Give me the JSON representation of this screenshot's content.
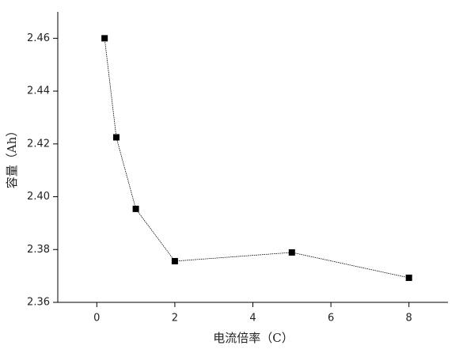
{
  "chart_data": {
    "type": "line",
    "xlabel": "电流倍率（C）",
    "ylabel": "容量（Ah）",
    "x": [
      0.2,
      0.5,
      1,
      2,
      5,
      8
    ],
    "series": [
      {
        "color": "#000000",
        "values": [
          2.46,
          2.4225,
          2.3954,
          2.3756,
          2.3789,
          2.3693
        ]
      }
    ],
    "xlim": [
      -1,
      9
    ],
    "xticks": [
      0,
      2,
      4,
      6,
      8
    ],
    "ylim": [
      2.36,
      2.47
    ],
    "yticks": [
      2.36,
      2.38,
      {
        "value": 2.4,
        "label": "2.40"
      },
      2.42,
      2.44,
      2.46
    ],
    "grid": false
  }
}
